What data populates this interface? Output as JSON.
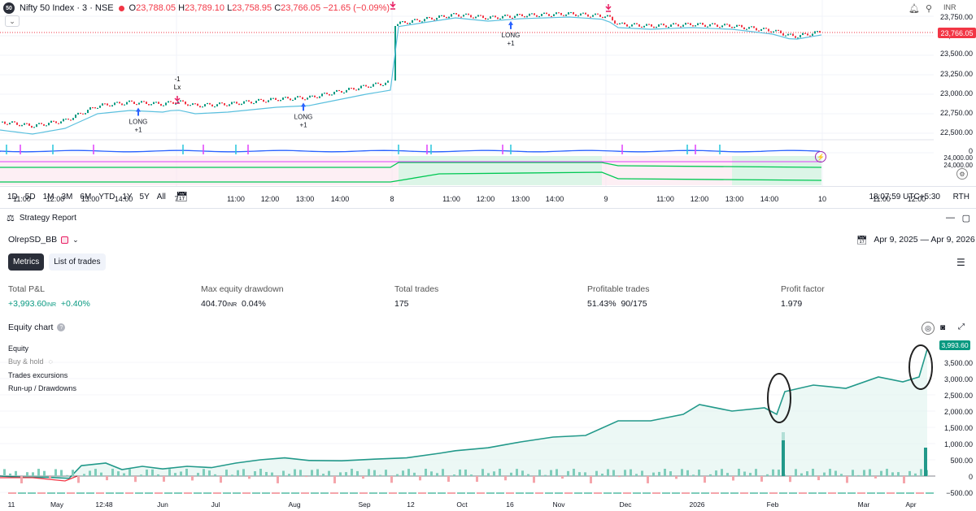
{
  "chart_header": {
    "logo_text": "50",
    "symbol": "Nifty 50 Index · 3 · NSE",
    "o_label": "O",
    "o": "23,788.05",
    "h_label": "H",
    "h": "23,789.10",
    "l_label": "L",
    "l": "23,758.95",
    "c_label": "C",
    "c": "23,766.05",
    "change": "−21.65 (−0.09%)",
    "currency": "INR"
  },
  "price_axis": [
    "24,000.00",
    "23,750.00",
    "23,500.00",
    "23,250.00",
    "23,000.00",
    "22,750.00",
    "22,500.00",
    "0",
    "24,000.00",
    "24,000.00"
  ],
  "last_price": "23,766.05",
  "time_axis": [
    "11:00",
    "12:00",
    "13:00",
    "14:00",
    "7",
    "11:00",
    "12:00",
    "13:00",
    "14:00",
    "8",
    "11:00",
    "12:00",
    "13:00",
    "14:00",
    "9",
    "11:00",
    "12:00",
    "13:00",
    "14:00",
    "10",
    "11:00",
    "12:00"
  ],
  "signals": [
    {
      "label": "LONG",
      "qty": "+1"
    },
    {
      "label": "LONG",
      "qty": "+1"
    },
    {
      "label": "LONG",
      "qty": "+1"
    }
  ],
  "exit_signal": {
    "qty": "-1",
    "label": "Lx"
  },
  "range_bar": {
    "ranges": [
      "1D",
      "5D",
      "1M",
      "3M",
      "6M",
      "YTD",
      "1Y",
      "5Y",
      "All"
    ],
    "clock": "18:07:59 UTC+5:30",
    "session": "RTH"
  },
  "strategy": {
    "panel_title": "Strategy Report",
    "name": "OlrepSD_BB",
    "date_range": "Apr 9, 2025 — Apr 9, 2026",
    "tabs": [
      "Metrics",
      "List of trades"
    ]
  },
  "metrics": {
    "total_pnl": {
      "label": "Total P&L",
      "value": "+3,993.60",
      "unit": "INR",
      "pct": "+0.40%"
    },
    "max_dd": {
      "label": "Max equity drawdown",
      "value": "404.70",
      "unit": "INR",
      "pct": "0.04%"
    },
    "total_trades": {
      "label": "Total trades",
      "value": "175"
    },
    "profitable": {
      "label": "Profitable trades",
      "value": "51.43%",
      "ratio": "90/175"
    },
    "profit_factor": {
      "label": "Profit factor",
      "value": "1.979"
    }
  },
  "equity": {
    "title": "Equity chart",
    "legend": [
      "Equity",
      "Buy & hold",
      "Trades excursions",
      "Run-up / Drawdowns"
    ],
    "last_value": "3,993.60",
    "axis": [
      "3,500.00",
      "3,000.00",
      "2,500.00",
      "2,000.00",
      "1,500.00",
      "1,000.00",
      "500.00",
      "0",
      "−500.00"
    ],
    "x_labels": [
      "11",
      "May",
      "12:48",
      "Jun",
      "Jul",
      "Aug",
      "Sep",
      "12",
      "Oct",
      "16",
      "Nov",
      "Dec",
      "2026",
      "Feb",
      "Mar",
      "Apr"
    ]
  },
  "colors": {
    "up": "#089981",
    "down": "#f23645",
    "accent": "#2962ff",
    "signal": "#e91e63"
  }
}
